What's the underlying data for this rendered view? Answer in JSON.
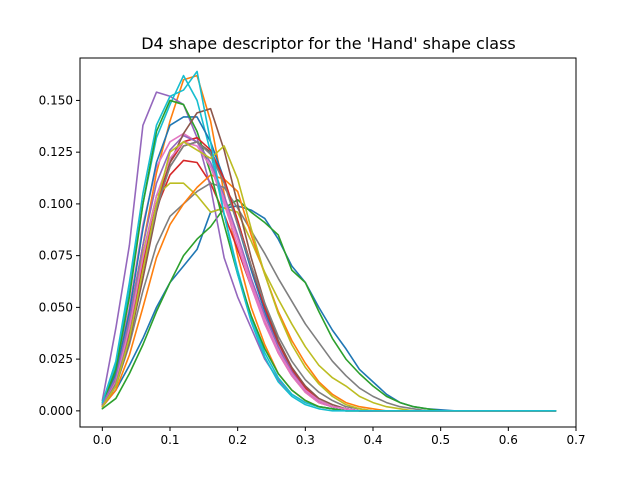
{
  "chart_data": {
    "type": "line",
    "title": "D4 shape descriptor for the 'Hand' shape class",
    "xlabel": "",
    "ylabel": "",
    "xlim": [
      -0.033,
      0.7
    ],
    "ylim": [
      -0.0078,
      0.1705
    ],
    "grid": false,
    "legend": "none",
    "xticks": [
      0.0,
      0.1,
      0.2,
      0.3,
      0.4,
      0.5,
      0.6,
      0.7
    ],
    "xtick_labels": [
      "0.0",
      "0.1",
      "0.2",
      "0.3",
      "0.4",
      "0.5",
      "0.6",
      "0.7"
    ],
    "yticks": [
      0.0,
      0.025,
      0.05,
      0.075,
      0.1,
      0.125,
      0.15
    ],
    "ytick_labels": [
      "0.000",
      "0.025",
      "0.050",
      "0.075",
      "0.100",
      "0.125",
      "0.150"
    ],
    "x": [
      0.0,
      0.02,
      0.04,
      0.06,
      0.08,
      0.1,
      0.12,
      0.14,
      0.16,
      0.18,
      0.2,
      0.22,
      0.24,
      0.26,
      0.28,
      0.3,
      0.32,
      0.34,
      0.36,
      0.38,
      0.4,
      0.42,
      0.44,
      0.46,
      0.48,
      0.5,
      0.52,
      0.54,
      0.56,
      0.58,
      0.6,
      0.62,
      0.64,
      0.66,
      0.67
    ],
    "series": [
      {
        "color": "#1f77b4",
        "values": [
          0.002,
          0.01,
          0.022,
          0.035,
          0.05,
          0.062,
          0.07,
          0.078,
          0.096,
          0.098,
          0.099,
          0.097,
          0.093,
          0.083,
          0.07,
          0.062,
          0.05,
          0.039,
          0.03,
          0.02,
          0.014,
          0.008,
          0.004,
          0.002,
          0.001,
          0.0005,
          0.0,
          0.0,
          0.0,
          0.0,
          0.0,
          0.0,
          0.0,
          0.0,
          0.0
        ]
      },
      {
        "color": "#ff7f0e",
        "values": [
          0.004,
          0.018,
          0.045,
          0.08,
          0.115,
          0.14,
          0.16,
          0.162,
          0.14,
          0.105,
          0.075,
          0.05,
          0.032,
          0.018,
          0.01,
          0.005,
          0.002,
          0.001,
          0.0,
          0.0,
          0.0,
          0.0,
          0.0,
          0.0,
          0.0,
          0.0,
          0.0,
          0.0,
          0.0,
          0.0,
          0.0,
          0.0,
          0.0,
          0.0,
          0.0
        ]
      },
      {
        "color": "#2ca02c",
        "values": [
          0.001,
          0.006,
          0.018,
          0.032,
          0.048,
          0.062,
          0.075,
          0.083,
          0.089,
          0.098,
          0.102,
          0.096,
          0.091,
          0.085,
          0.068,
          0.062,
          0.048,
          0.035,
          0.025,
          0.018,
          0.012,
          0.007,
          0.004,
          0.002,
          0.001,
          0.0,
          0.0,
          0.0,
          0.0,
          0.0,
          0.0,
          0.0,
          0.0,
          0.0,
          0.0
        ]
      },
      {
        "color": "#d62728",
        "values": [
          0.002,
          0.012,
          0.035,
          0.068,
          0.098,
          0.114,
          0.121,
          0.12,
          0.11,
          0.095,
          0.078,
          0.06,
          0.043,
          0.028,
          0.017,
          0.009,
          0.004,
          0.002,
          0.001,
          0.0,
          0.0,
          0.0,
          0.0,
          0.0,
          0.0,
          0.0,
          0.0,
          0.0,
          0.0,
          0.0,
          0.0,
          0.0,
          0.0,
          0.0,
          0.0
        ]
      },
      {
        "color": "#9467bd",
        "values": [
          0.005,
          0.04,
          0.08,
          0.138,
          0.154,
          0.152,
          0.148,
          0.132,
          0.108,
          0.074,
          0.055,
          0.04,
          0.025,
          0.015,
          0.008,
          0.004,
          0.002,
          0.001,
          0.0,
          0.0,
          0.0,
          0.0,
          0.0,
          0.0,
          0.0,
          0.0,
          0.0,
          0.0,
          0.0,
          0.0,
          0.0,
          0.0,
          0.0,
          0.0,
          0.0
        ]
      },
      {
        "color": "#8c564b",
        "values": [
          0.002,
          0.015,
          0.04,
          0.072,
          0.1,
          0.118,
          0.128,
          0.13,
          0.125,
          0.112,
          0.092,
          0.07,
          0.05,
          0.033,
          0.02,
          0.011,
          0.005,
          0.002,
          0.001,
          0.0,
          0.0,
          0.0,
          0.0,
          0.0,
          0.0,
          0.0,
          0.0,
          0.0,
          0.0,
          0.0,
          0.0,
          0.0,
          0.0,
          0.0,
          0.0
        ]
      },
      {
        "color": "#e377c2",
        "values": [
          0.003,
          0.02,
          0.05,
          0.09,
          0.118,
          0.13,
          0.134,
          0.13,
          0.118,
          0.1,
          0.08,
          0.06,
          0.042,
          0.028,
          0.017,
          0.009,
          0.004,
          0.002,
          0.001,
          0.0,
          0.0,
          0.0,
          0.0,
          0.0,
          0.0,
          0.0,
          0.0,
          0.0,
          0.0,
          0.0,
          0.0,
          0.0,
          0.0,
          0.0,
          0.0
        ]
      },
      {
        "color": "#7f7f7f",
        "values": [
          0.002,
          0.012,
          0.032,
          0.058,
          0.08,
          0.094,
          0.1,
          0.106,
          0.11,
          0.108,
          0.098,
          0.087,
          0.076,
          0.064,
          0.053,
          0.042,
          0.033,
          0.024,
          0.017,
          0.011,
          0.007,
          0.004,
          0.002,
          0.001,
          0.0,
          0.0,
          0.0,
          0.0,
          0.0,
          0.0,
          0.0,
          0.0,
          0.0,
          0.0,
          0.0
        ]
      },
      {
        "color": "#bcbd22",
        "values": [
          0.003,
          0.016,
          0.042,
          0.076,
          0.104,
          0.11,
          0.11,
          0.104,
          0.096,
          0.098,
          0.096,
          0.082,
          0.067,
          0.054,
          0.042,
          0.031,
          0.022,
          0.016,
          0.012,
          0.007,
          0.004,
          0.002,
          0.001,
          0.0,
          0.0,
          0.0,
          0.0,
          0.0,
          0.0,
          0.0,
          0.0,
          0.0,
          0.0,
          0.0,
          0.0
        ]
      },
      {
        "color": "#17becf",
        "values": [
          0.004,
          0.022,
          0.058,
          0.1,
          0.132,
          0.148,
          0.162,
          0.15,
          0.125,
          0.095,
          0.068,
          0.045,
          0.028,
          0.016,
          0.008,
          0.004,
          0.002,
          0.001,
          0.0,
          0.0,
          0.0,
          0.0,
          0.0,
          0.0,
          0.0,
          0.0,
          0.0,
          0.0,
          0.0,
          0.0,
          0.0,
          0.0,
          0.0,
          0.0,
          0.0
        ]
      },
      {
        "color": "#1f77b4",
        "values": [
          0.003,
          0.018,
          0.048,
          0.088,
          0.12,
          0.138,
          0.142,
          0.142,
          0.13,
          0.112,
          0.09,
          0.068,
          0.048,
          0.031,
          0.018,
          0.01,
          0.005,
          0.002,
          0.001,
          0.0,
          0.0,
          0.0,
          0.0,
          0.0,
          0.0,
          0.0,
          0.0,
          0.0,
          0.0,
          0.0,
          0.0,
          0.0,
          0.0,
          0.0,
          0.0
        ]
      },
      {
        "color": "#ff7f0e",
        "values": [
          0.002,
          0.01,
          0.027,
          0.05,
          0.074,
          0.09,
          0.1,
          0.108,
          0.114,
          0.112,
          0.106,
          0.085,
          0.066,
          0.048,
          0.034,
          0.023,
          0.014,
          0.008,
          0.004,
          0.002,
          0.001,
          0.0,
          0.0,
          0.0,
          0.0,
          0.0,
          0.0,
          0.0,
          0.0,
          0.0,
          0.0,
          0.0,
          0.0,
          0.0,
          0.0
        ]
      },
      {
        "color": "#2ca02c",
        "values": [
          0.003,
          0.02,
          0.055,
          0.1,
          0.135,
          0.15,
          0.148,
          0.135,
          0.115,
          0.09,
          0.066,
          0.046,
          0.03,
          0.018,
          0.01,
          0.005,
          0.002,
          0.001,
          0.0,
          0.0,
          0.0,
          0.0,
          0.0,
          0.0,
          0.0,
          0.0,
          0.0,
          0.0,
          0.0,
          0.0,
          0.0,
          0.0,
          0.0,
          0.0,
          0.0
        ]
      },
      {
        "color": "#d62728",
        "values": [
          0.002,
          0.014,
          0.038,
          0.07,
          0.1,
          0.12,
          0.13,
          0.132,
          0.126,
          0.112,
          0.092,
          0.07,
          0.05,
          0.033,
          0.02,
          0.011,
          0.005,
          0.002,
          0.001,
          0.0,
          0.0,
          0.0,
          0.0,
          0.0,
          0.0,
          0.0,
          0.0,
          0.0,
          0.0,
          0.0,
          0.0,
          0.0,
          0.0,
          0.0,
          0.0
        ]
      },
      {
        "color": "#9467bd",
        "values": [
          0.003,
          0.016,
          0.044,
          0.08,
          0.11,
          0.126,
          0.133,
          0.13,
          0.12,
          0.104,
          0.085,
          0.064,
          0.046,
          0.031,
          0.019,
          0.01,
          0.005,
          0.002,
          0.001,
          0.0,
          0.0,
          0.0,
          0.0,
          0.0,
          0.0,
          0.0,
          0.0,
          0.0,
          0.0,
          0.0,
          0.0,
          0.0,
          0.0,
          0.0,
          0.0
        ]
      },
      {
        "color": "#8c564b",
        "values": [
          0.002,
          0.012,
          0.034,
          0.064,
          0.096,
          0.12,
          0.134,
          0.144,
          0.146,
          0.126,
          0.1,
          0.074,
          0.052,
          0.034,
          0.021,
          0.012,
          0.006,
          0.003,
          0.001,
          0.0,
          0.0,
          0.0,
          0.0,
          0.0,
          0.0,
          0.0,
          0.0,
          0.0,
          0.0,
          0.0,
          0.0,
          0.0,
          0.0,
          0.0,
          0.0
        ]
      },
      {
        "color": "#e377c2",
        "values": [
          0.002,
          0.014,
          0.04,
          0.074,
          0.104,
          0.122,
          0.13,
          0.128,
          0.118,
          0.102,
          0.083,
          0.062,
          0.044,
          0.029,
          0.018,
          0.01,
          0.005,
          0.002,
          0.001,
          0.0,
          0.0,
          0.0,
          0.0,
          0.0,
          0.0,
          0.0,
          0.0,
          0.0,
          0.0,
          0.0,
          0.0,
          0.0,
          0.0,
          0.0,
          0.0
        ]
      },
      {
        "color": "#7f7f7f",
        "values": [
          0.002,
          0.013,
          0.036,
          0.068,
          0.098,
          0.118,
          0.128,
          0.13,
          0.124,
          0.11,
          0.09,
          0.07,
          0.052,
          0.036,
          0.024,
          0.015,
          0.009,
          0.005,
          0.002,
          0.001,
          0.0,
          0.0,
          0.0,
          0.0,
          0.0,
          0.0,
          0.0,
          0.0,
          0.0,
          0.0,
          0.0,
          0.0,
          0.0,
          0.0,
          0.0
        ]
      },
      {
        "color": "#bcbd22",
        "values": [
          0.002,
          0.012,
          0.035,
          0.068,
          0.1,
          0.125,
          0.13,
          0.126,
          0.122,
          0.128,
          0.112,
          0.088,
          0.066,
          0.047,
          0.032,
          0.021,
          0.013,
          0.007,
          0.003,
          0.001,
          0.0,
          0.0,
          0.0,
          0.0,
          0.0,
          0.0,
          0.0,
          0.0,
          0.0,
          0.0,
          0.0,
          0.0,
          0.0,
          0.0,
          0.0
        ]
      },
      {
        "color": "#17becf",
        "values": [
          0.004,
          0.024,
          0.062,
          0.105,
          0.138,
          0.152,
          0.155,
          0.164,
          0.13,
          0.095,
          0.066,
          0.043,
          0.026,
          0.014,
          0.007,
          0.003,
          0.001,
          0.0,
          0.0,
          0.0,
          0.0,
          0.0,
          0.0,
          0.0,
          0.0,
          0.0,
          0.0,
          0.0,
          0.0,
          0.0,
          0.0,
          0.0,
          0.0,
          0.0,
          0.0
        ]
      }
    ]
  }
}
